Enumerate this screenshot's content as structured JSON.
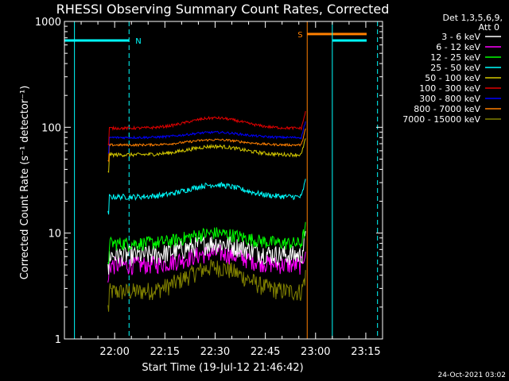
{
  "chart_data": {
    "type": "line",
    "title": "RHESSI Observing Summary Count Rates, Corrected",
    "xlabel": "Start Time (19-Jul-12 21:46:42)",
    "ylabel": "Corrected Count Rate (s⁻¹ detector⁻¹)",
    "y_scale": "log",
    "ylim": [
      1,
      1000
    ],
    "xlim_minutes": [
      -15,
      80
    ],
    "x_tick_labels": [
      "22:00",
      "22:15",
      "22:30",
      "22:45",
      "23:00",
      "23:15"
    ],
    "x_tick_minutes": [
      0,
      15,
      30,
      45,
      60,
      75
    ],
    "y_tick_labels": [
      "1",
      "10",
      "100",
      "1000"
    ],
    "y_tick_values": [
      1,
      10,
      100,
      1000
    ],
    "legend_header": [
      "Det 1,3,5,6,9,",
      "Att 0"
    ],
    "legend_position": "right",
    "footer_date": "24-Oct-2021 03:02",
    "flag_bars": [
      {
        "label": "N",
        "color": "#00ffff",
        "start_min": -15,
        "end_min": 4.3,
        "level": 660
      },
      {
        "label": "S",
        "color": "#ff7f00",
        "start_min": 57.5,
        "end_min": 80,
        "level": 760
      },
      {
        "label": "",
        "color": "#00ffff",
        "start_min": 65,
        "end_min": 80,
        "level": 660
      }
    ],
    "vertical_lines": [
      {
        "minute": -12,
        "color": "#00ffff",
        "style": "solid"
      },
      {
        "minute": 4.3,
        "color": "#00ffff",
        "style": "dashed"
      },
      {
        "minute": 57.5,
        "color": "#ff7f00",
        "style": "solid"
      },
      {
        "minute": 65,
        "color": "#00ffff",
        "style": "solid"
      },
      {
        "minute": 78.5,
        "color": "#00ffff",
        "style": "dashed"
      }
    ],
    "data_start_min": -2,
    "data_end_min": 57,
    "series": [
      {
        "name": "3 - 6 keV",
        "color": "#ffffff",
        "base": 6.2,
        "bump": 1.3,
        "noise": 0.22
      },
      {
        "name": "6 - 12 keV",
        "color": "#ff00ff",
        "base": 5.0,
        "bump": 1.3,
        "noise": 0.2
      },
      {
        "name": "12 - 25 keV",
        "color": "#00ff00",
        "base": 8.0,
        "bump": 1.25,
        "noise": 0.15
      },
      {
        "name": "25 - 50 keV",
        "color": "#00ffff",
        "base": 22.0,
        "bump": 1.3,
        "noise": 0.06
      },
      {
        "name": "50 - 100 keV",
        "color": "#d4c800",
        "base": 55.0,
        "bump": 1.2,
        "noise": 0.04
      },
      {
        "name": "100 - 300 keV",
        "color": "#e00000",
        "base": 98.0,
        "bump": 1.25,
        "noise": 0.03
      },
      {
        "name": "300 - 800 keV",
        "color": "#0000ff",
        "base": 80.0,
        "bump": 1.12,
        "noise": 0.025
      },
      {
        "name": "800 - 7000 keV",
        "color": "#ff7f00",
        "base": 68.0,
        "bump": 1.12,
        "noise": 0.025
      },
      {
        "name": "7000 - 15000 keV",
        "color": "#808000",
        "base": 2.8,
        "bump": 1.7,
        "noise": 0.2
      }
    ]
  }
}
